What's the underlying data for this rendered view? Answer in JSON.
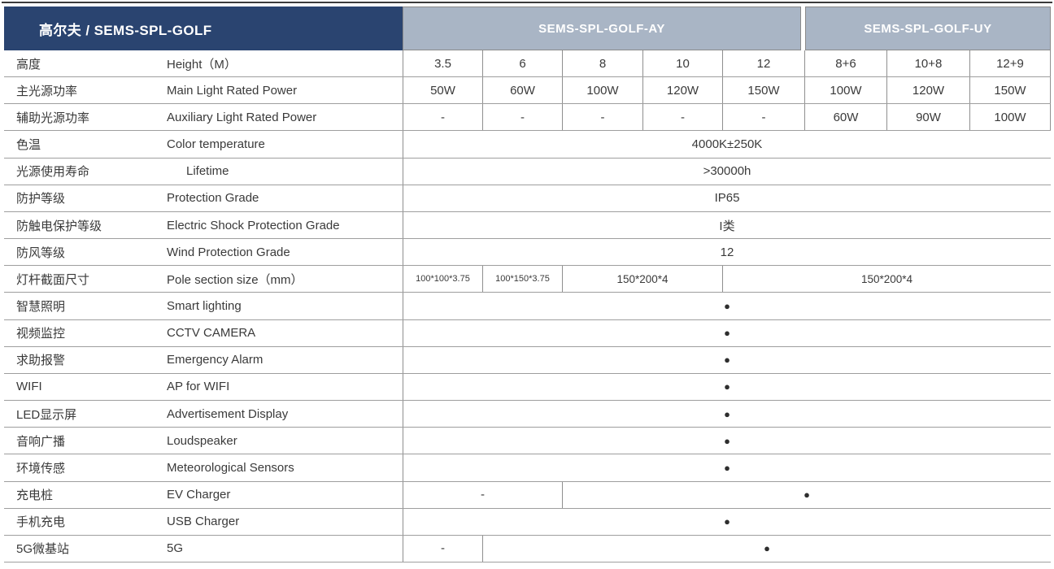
{
  "colors": {
    "navy": "#2a4470",
    "steel": "#a9b5c5",
    "hline": "#9e9e9e",
    "vline": "#8f8f8f",
    "text": "#3a3a3a"
  },
  "header": {
    "title": "高尔夫 / SEMS-SPL-GOLF",
    "group_ay": "SEMS-SPL-GOLF-AY",
    "group_uy": "SEMS-SPL-GOLF-UY"
  },
  "table": {
    "rows": [
      {
        "cn": "高度",
        "en": "Height（M）",
        "cells": [
          "3.5",
          "6",
          "8",
          "10",
          "12",
          "8+6",
          "10+8",
          "12+9"
        ]
      },
      {
        "cn": "主光源功率",
        "en": "Main Light Rated Power",
        "cells": [
          "50W",
          "60W",
          "100W",
          "120W",
          "150W",
          "100W",
          "120W",
          "150W"
        ]
      },
      {
        "cn": "辅助光源功率",
        "en": "Auxiliary Light Rated Power",
        "cells": [
          "-",
          "-",
          "-",
          "-",
          "-",
          "60W",
          "90W",
          "100W"
        ]
      },
      {
        "cn": "色温",
        "en": "Color temperature",
        "merged": "4000K±250K"
      },
      {
        "cn": "光源使用寿命",
        "en": "Lifetime",
        "merged": ">30000h"
      },
      {
        "cn": "防护等级",
        "en": "Protection Grade",
        "merged": "IP65"
      },
      {
        "cn": "防触电保护等级",
        "en": "Electric Shock Protection Grade",
        "merged": "I类"
      },
      {
        "cn": "防风等级",
        "en": "Wind Protection Grade",
        "merged": "12"
      },
      {
        "cn": "灯杆截面尺寸",
        "en": "Pole section size（mm）",
        "cells": [
          "100*100*3.75",
          "100*150*3.75",
          "150*200*4",
          "150*200*4"
        ]
      },
      {
        "cn": "智慧照明",
        "en": "Smart lighting",
        "merged": "●"
      },
      {
        "cn": "视频监控",
        "en": "CCTV CAMERA",
        "merged": "●"
      },
      {
        "cn": "求助报警",
        "en": "Emergency Alarm",
        "merged": "●"
      },
      {
        "cn": "WIFI",
        "en": "AP for WIFI",
        "merged": "●"
      },
      {
        "cn": "LED显示屏",
        "en": "Advertisement Display",
        "merged": "●"
      },
      {
        "cn": "音响广播",
        "en": "Loudspeaker",
        "merged": "●"
      },
      {
        "cn": "环境传感",
        "en": "Meteorological Sensors",
        "merged": "●"
      },
      {
        "cn": "充电桩",
        "en": "EV Charger",
        "cells": [
          "-",
          "●"
        ]
      },
      {
        "cn": "手机充电",
        "en": "USB Charger",
        "merged": "●"
      },
      {
        "cn": "5G微基站",
        "en": "5G",
        "cells": [
          "-",
          "●"
        ]
      }
    ]
  }
}
